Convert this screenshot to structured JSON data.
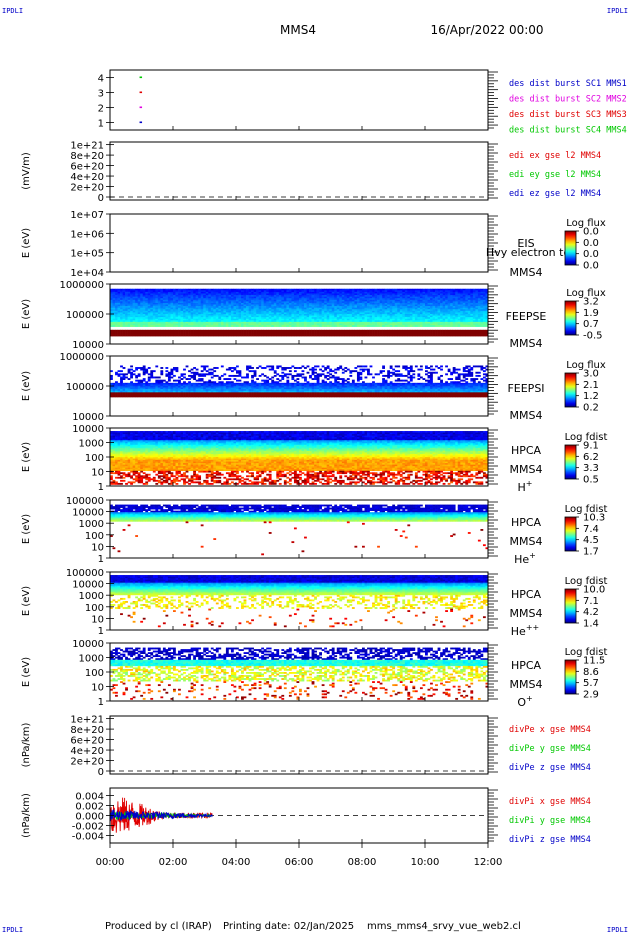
{
  "header": {
    "corner_tl": "IPDLI",
    "corner_tr": "IPDLI",
    "corner_bl": "IPDLI",
    "corner_br": "IPDLI",
    "spacecraft": "MMS4",
    "date": "16/Apr/2022 00:00"
  },
  "footer": {
    "produced_by": "Produced by cl (IRAP)",
    "printing_date": "Printing date: 02/Jan/2025",
    "filename": "mms_mms4_srvy_vue_web2.cl"
  },
  "x_axis": {
    "ticks": [
      "00:00",
      "02:00",
      "04:00",
      "06:00",
      "08:00",
      "10:00",
      "12:00"
    ],
    "range_hours": [
      0,
      12
    ]
  },
  "colors": {
    "red": "#e00000",
    "green": "#00c800",
    "blue": "#0000c8",
    "magenta": "#e000e0"
  },
  "chart_data": [
    {
      "id": "burst",
      "type": "scatter",
      "ylabel": "",
      "yticks": [
        "4",
        "3",
        "2",
        "1"
      ],
      "ylim": [
        0.5,
        4.5
      ],
      "series": [
        {
          "name": "des dist burst SC1 MMS1",
          "color": "blue",
          "x": [
            0.97
          ],
          "y": [
            1
          ]
        },
        {
          "name": "des dist burst SC2 MMS2",
          "color": "magenta",
          "x": [
            0.97
          ],
          "y": [
            2
          ]
        },
        {
          "name": "des dist burst SC3 MMS3",
          "color": "red",
          "x": [
            0.97
          ],
          "y": [
            3
          ]
        },
        {
          "name": "des dist burst SC4 MMS4",
          "color": "green",
          "x": [
            0.97
          ],
          "y": [
            4
          ]
        }
      ]
    },
    {
      "id": "edi",
      "type": "line",
      "ylabel": "(mV/m)",
      "yticks": [
        "1e+21",
        "8e+20",
        "6e+20",
        "4e+20",
        "2e+20",
        "0"
      ],
      "ylim": [
        0,
        1.05e+21
      ],
      "zero_line": true,
      "series": [
        {
          "name": "edi ex gse l2 MMS4",
          "color": "red",
          "values": []
        },
        {
          "name": "edi ey gse l2 MMS4",
          "color": "green",
          "values": []
        },
        {
          "name": "edi ez gse l2 MMS4",
          "color": "blue",
          "values": []
        }
      ]
    },
    {
      "id": "eis",
      "type": "heatmap",
      "ylabel": "E (eV)",
      "yticks": [
        "1e+07",
        "1e+06",
        "1e+05",
        "1e+04"
      ],
      "ylim": [
        10000,
        10000000
      ],
      "log_y": true,
      "labels": [
        "EIS",
        "Hvy electron tof",
        "MMS4"
      ],
      "colorbar_title": "Log flux",
      "colorbar_ticks": [
        "0.0",
        "0.0",
        "0.0",
        "0.0"
      ],
      "empty": true
    },
    {
      "id": "feepse",
      "type": "heatmap",
      "ylabel": "E (eV)",
      "yticks": [
        "1000000",
        "100000",
        "10000"
      ],
      "ylim": [
        10000,
        1000000
      ],
      "log_y": true,
      "labels": [
        "FEEPSE",
        "MMS4"
      ],
      "colorbar_title": "Log flux",
      "colorbar_ticks": [
        "3.2",
        "1.9",
        "0.7",
        "-0.5"
      ],
      "pattern": "feepse"
    },
    {
      "id": "feepsi",
      "type": "heatmap",
      "ylabel": "E (eV)",
      "yticks": [
        "1000000",
        "100000",
        "10000"
      ],
      "ylim": [
        10000,
        1000000
      ],
      "log_y": true,
      "labels": [
        "FEEPSI",
        "MMS4"
      ],
      "colorbar_title": "Log flux",
      "colorbar_ticks": [
        "3.0",
        "2.1",
        "1.2",
        "0.2"
      ],
      "pattern": "feepsi"
    },
    {
      "id": "hpca_h",
      "type": "heatmap",
      "ylabel": "E (eV)",
      "yticks": [
        "10000",
        "1000",
        "100",
        "10",
        "1"
      ],
      "ylim": [
        1,
        20000
      ],
      "log_y": true,
      "labels": [
        "HPCA",
        "MMS4"
      ],
      "species": "H",
      "species_sup": "+",
      "colorbar_title": "Log fdist",
      "colorbar_ticks": [
        "9.1",
        "6.2",
        "3.3",
        "0.5"
      ],
      "pattern": "hpca_h"
    },
    {
      "id": "hpca_he1",
      "type": "heatmap",
      "ylabel": "E (eV)",
      "yticks": [
        "100000",
        "10000",
        "1000",
        "100",
        "10",
        "1"
      ],
      "ylim": [
        1,
        100000
      ],
      "log_y": true,
      "labels": [
        "HPCA",
        "MMS4"
      ],
      "species": "He",
      "species_sup": "+",
      "colorbar_title": "Log fdist",
      "colorbar_ticks": [
        "10.3",
        "7.4",
        "4.5",
        "1.7"
      ],
      "pattern": "hpca_he1"
    },
    {
      "id": "hpca_he2",
      "type": "heatmap",
      "ylabel": "E (eV)",
      "yticks": [
        "100000",
        "10000",
        "1000",
        "100",
        "10",
        "1"
      ],
      "ylim": [
        1,
        100000
      ],
      "log_y": true,
      "labels": [
        "HPCA",
        "MMS4"
      ],
      "species": "He",
      "species_sup": "++",
      "colorbar_title": "Log fdist",
      "colorbar_ticks": [
        "10.0",
        "7.1",
        "4.2",
        "1.4"
      ],
      "pattern": "hpca_he2"
    },
    {
      "id": "hpca_o",
      "type": "heatmap",
      "ylabel": "E (eV)",
      "yticks": [
        "10000",
        "1000",
        "100",
        "10",
        "1"
      ],
      "ylim": [
        1,
        20000
      ],
      "log_y": true,
      "labels": [
        "HPCA",
        "MMS4"
      ],
      "species": "O",
      "species_sup": "+",
      "colorbar_title": "Log fdist",
      "colorbar_ticks": [
        "11.5",
        "8.6",
        "5.7",
        "2.9"
      ],
      "pattern": "hpca_o"
    },
    {
      "id": "divpe",
      "type": "line",
      "ylabel": "(nPa/km)",
      "yticks": [
        "1e+21",
        "8e+20",
        "6e+20",
        "4e+20",
        "2e+20",
        "0"
      ],
      "ylim": [
        0,
        1.05e+21
      ],
      "zero_line": true,
      "series": [
        {
          "name": "divPe x gse MMS4",
          "color": "red",
          "values": []
        },
        {
          "name": "divPe y gse MMS4",
          "color": "green",
          "values": []
        },
        {
          "name": "divPe z gse MMS4",
          "color": "blue",
          "values": []
        }
      ]
    },
    {
      "id": "divpi",
      "type": "line",
      "ylabel": "(nPa/km)",
      "yticks": [
        "0.004",
        "0.002",
        "0.000",
        "-0.002",
        "-0.004"
      ],
      "ylim": [
        -0.0055,
        0.0055
      ],
      "zero_line": true,
      "data_end_hour": 3.25,
      "series": [
        {
          "name": "divPi x gse MMS4",
          "color": "red",
          "peak_amplitude": 0.0047,
          "decay_end_hour": 1.6
        },
        {
          "name": "divPi y gse MMS4",
          "color": "green",
          "peak_amplitude": 0.0008,
          "decay_end_hour": 3.2
        },
        {
          "name": "divPi z gse MMS4",
          "color": "blue",
          "peak_amplitude": 0.0012,
          "decay_end_hour": 3.2
        }
      ]
    }
  ]
}
